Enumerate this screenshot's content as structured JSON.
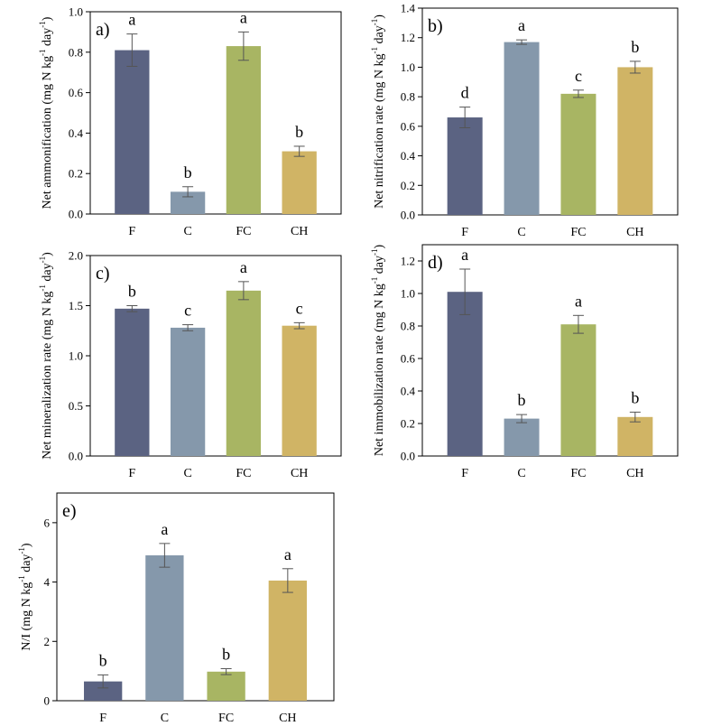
{
  "colors": [
    "#5b6382",
    "#8598ab",
    "#a8b563",
    "#d0b465"
  ],
  "chart_data": [
    {
      "type": "bar",
      "panel_label": "a)",
      "ylabel_prefix": "Net ammonification (mg N kg",
      "ylabel_exp1": "-1",
      "ylabel_mid": " day",
      "ylabel_exp2": "-1",
      "ylabel_suffix": ")",
      "categories": [
        "F",
        "C",
        "FC",
        "CH"
      ],
      "values": [
        0.81,
        0.11,
        0.83,
        0.31
      ],
      "errors": [
        0.08,
        0.025,
        0.07,
        0.025
      ],
      "letters": [
        "a",
        "b",
        "a",
        "b"
      ],
      "ylim": [
        0,
        1.0
      ],
      "yticks": [
        "0.0",
        "0.2",
        "0.4",
        "0.6",
        "0.8",
        "1.0"
      ]
    },
    {
      "type": "bar",
      "panel_label": "b)",
      "ylabel_prefix": "Net nitrification rate (mg N kg",
      "ylabel_exp1": "-1",
      "ylabel_mid": " day",
      "ylabel_exp2": "-1",
      "ylabel_suffix": ")",
      "categories": [
        "F",
        "C",
        "FC",
        "CH"
      ],
      "values": [
        0.66,
        1.17,
        0.82,
        1.0
      ],
      "errors": [
        0.07,
        0.015,
        0.025,
        0.04
      ],
      "letters": [
        "d",
        "a",
        "c",
        "b"
      ],
      "ylim": [
        0,
        1.4
      ],
      "yticks": [
        "0.0",
        "0.2",
        "0.4",
        "0.6",
        "0.8",
        "1.0",
        "1.2",
        "1.4"
      ]
    },
    {
      "type": "bar",
      "panel_label": "c)",
      "ylabel_prefix": "Net mineralization rate (mg N kg",
      "ylabel_exp1": "-1",
      "ylabel_mid": " day",
      "ylabel_exp2": "-1",
      "ylabel_suffix": ")",
      "categories": [
        "F",
        "C",
        "FC",
        "CH"
      ],
      "values": [
        1.47,
        1.28,
        1.65,
        1.3
      ],
      "errors": [
        0.03,
        0.03,
        0.09,
        0.03
      ],
      "letters": [
        "b",
        "c",
        "a",
        "c"
      ],
      "ylim": [
        0,
        2.0
      ],
      "yticks": [
        "0.0",
        "0.5",
        "1.0",
        "1.5",
        "2.0"
      ]
    },
    {
      "type": "bar",
      "panel_label": "d)",
      "ylabel_prefix": "Net immobilization rate (mg N kg",
      "ylabel_exp1": "-1",
      "ylabel_mid": " day",
      "ylabel_exp2": "-1",
      "ylabel_suffix": ")",
      "categories": [
        "F",
        "C",
        "FC",
        "CH"
      ],
      "values": [
        1.01,
        0.23,
        0.81,
        0.24
      ],
      "errors": [
        0.14,
        0.025,
        0.055,
        0.03
      ],
      "letters": [
        "a",
        "b",
        "a",
        "b"
      ],
      "ylim": [
        0,
        1.3
      ],
      "yticks": [
        "0.0",
        "0.2",
        "0.4",
        "0.6",
        "0.8",
        "1.0",
        "1.2"
      ]
    },
    {
      "type": "bar",
      "panel_label": "e)",
      "ylabel_prefix": "N/I (mg N kg",
      "ylabel_exp1": "-1",
      "ylabel_mid": " day",
      "ylabel_exp2": "-1",
      "ylabel_suffix": ")",
      "categories": [
        "F",
        "C",
        "FC",
        "CH"
      ],
      "values": [
        0.65,
        4.9,
        0.98,
        4.05
      ],
      "errors": [
        0.22,
        0.4,
        0.1,
        0.4
      ],
      "letters": [
        "b",
        "a",
        "b",
        "a"
      ],
      "ylim": [
        0,
        7
      ],
      "yticks": [
        "0",
        "2",
        "4",
        "6"
      ]
    }
  ]
}
